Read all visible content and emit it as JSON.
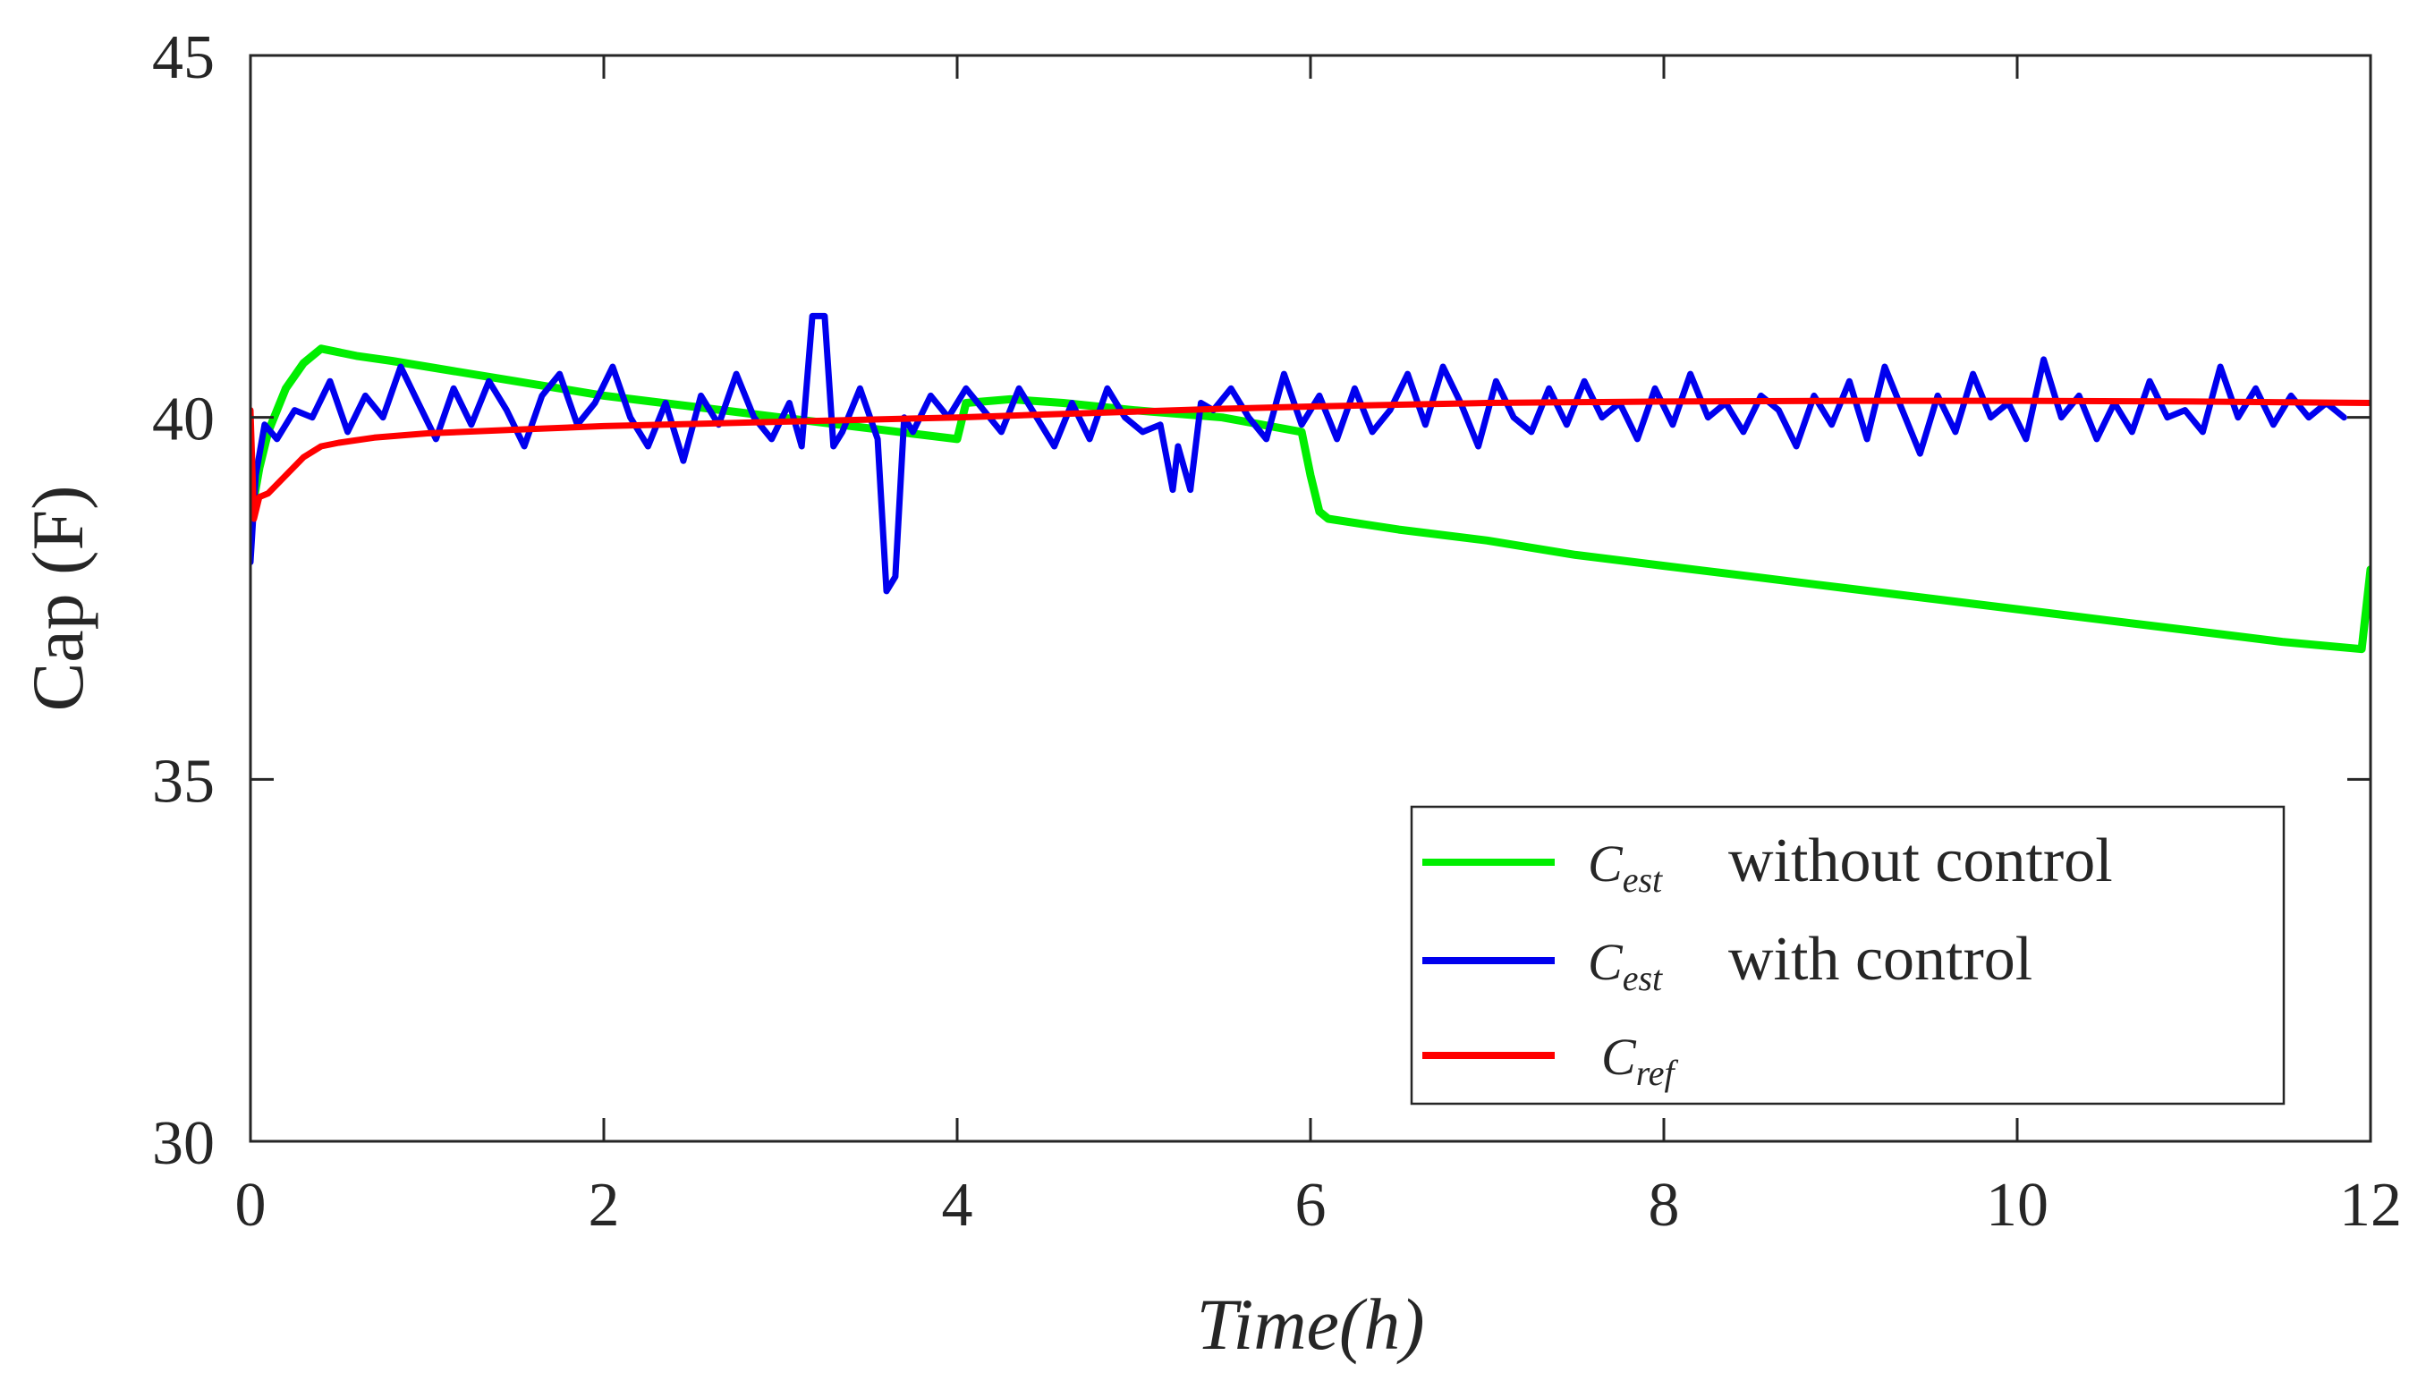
{
  "chart_data": {
    "type": "line",
    "title": "",
    "xlabel": "Time(h)",
    "ylabel": "Cap (F)",
    "xlim": [
      0,
      12
    ],
    "ylim": [
      30,
      45
    ],
    "xticks": [
      "0",
      "2",
      "4",
      "6",
      "8",
      "10",
      "12"
    ],
    "yticks": [
      "30",
      "35",
      "40",
      "45"
    ],
    "grid": false,
    "legend_position": "bottom-right",
    "legend": [
      {
        "symbol": "C",
        "subscript": "est",
        "text": "without control",
        "color": "#00ee00"
      },
      {
        "symbol": "C",
        "subscript": "est",
        "text": "with control",
        "color": "#0000ee"
      },
      {
        "symbol": "C",
        "subscript": "ref",
        "text": "",
        "color": "#ff0000"
      }
    ],
    "series": [
      {
        "name": "C_est without control",
        "color": "#00ee00",
        "x": [
          0,
          0.05,
          0.1,
          0.2,
          0.3,
          0.4,
          0.6,
          0.8,
          1.0,
          1.5,
          2.0,
          2.5,
          3.0,
          3.5,
          4.0,
          4.05,
          4.3,
          4.6,
          5.0,
          5.5,
          5.95,
          6.0,
          6.05,
          6.1,
          6.5,
          7.0,
          7.5,
          8.0,
          8.5,
          9.0,
          9.5,
          10.0,
          10.5,
          11.0,
          11.5,
          11.95,
          12.0
        ],
        "y": [
          38.6,
          39.3,
          39.8,
          40.4,
          40.75,
          40.95,
          40.85,
          40.78,
          40.7,
          40.5,
          40.3,
          40.15,
          40.0,
          39.85,
          39.7,
          40.2,
          40.25,
          40.2,
          40.1,
          40.0,
          39.8,
          39.2,
          38.7,
          38.6,
          38.45,
          38.3,
          38.1,
          37.95,
          37.8,
          37.65,
          37.5,
          37.35,
          37.2,
          37.05,
          36.9,
          36.8,
          37.9
        ]
      },
      {
        "name": "C_est with control",
        "color": "#0000ee",
        "x": [
          0,
          0.03,
          0.08,
          0.15,
          0.25,
          0.35,
          0.45,
          0.55,
          0.65,
          0.75,
          0.85,
          0.95,
          1.05,
          1.15,
          1.25,
          1.35,
          1.45,
          1.55,
          1.65,
          1.75,
          1.85,
          1.95,
          2.05,
          2.15,
          2.25,
          2.35,
          2.45,
          2.55,
          2.65,
          2.75,
          2.85,
          2.95,
          3.05,
          3.12,
          3.18,
          3.25,
          3.3,
          3.35,
          3.45,
          3.55,
          3.6,
          3.65,
          3.7,
          3.75,
          3.85,
          3.95,
          4.05,
          4.15,
          4.25,
          4.35,
          4.45,
          4.55,
          4.65,
          4.75,
          4.85,
          4.95,
          5.05,
          5.15,
          5.22,
          5.25,
          5.32,
          5.38,
          5.45,
          5.55,
          5.65,
          5.75,
          5.85,
          5.95,
          6.05,
          6.15,
          6.25,
          6.35,
          6.45,
          6.55,
          6.65,
          6.75,
          6.85,
          6.95,
          7.05,
          7.15,
          7.25,
          7.35,
          7.45,
          7.55,
          7.65,
          7.75,
          7.85,
          7.95,
          8.05,
          8.15,
          8.25,
          8.35,
          8.45,
          8.55,
          8.65,
          8.75,
          8.85,
          8.95,
          9.05,
          9.15,
          9.25,
          9.35,
          9.45,
          9.55,
          9.65,
          9.75,
          9.85,
          9.95,
          10.05,
          10.15,
          10.25,
          10.35,
          10.45,
          10.55,
          10.65,
          10.75,
          10.85,
          10.95,
          11.05,
          11.15,
          11.25,
          11.35,
          11.45,
          11.55,
          11.65,
          11.75,
          11.85
        ],
        "y": [
          38.0,
          39.2,
          39.9,
          39.7,
          40.1,
          40.0,
          40.5,
          39.8,
          40.3,
          40.0,
          40.7,
          40.2,
          39.7,
          40.4,
          39.9,
          40.5,
          40.1,
          39.6,
          40.3,
          40.6,
          39.9,
          40.2,
          40.7,
          40.0,
          39.6,
          40.2,
          39.4,
          40.3,
          39.9,
          40.6,
          40.0,
          39.7,
          40.2,
          39.6,
          41.4,
          41.4,
          39.6,
          39.8,
          40.4,
          39.7,
          37.6,
          37.8,
          40.0,
          39.8,
          40.3,
          40.0,
          40.4,
          40.1,
          39.8,
          40.4,
          40.0,
          39.6,
          40.2,
          39.7,
          40.4,
          40.0,
          39.8,
          39.9,
          39.0,
          39.6,
          39.0,
          40.2,
          40.1,
          40.4,
          40.0,
          39.7,
          40.6,
          39.9,
          40.3,
          39.7,
          40.4,
          39.8,
          40.1,
          40.6,
          39.9,
          40.7,
          40.2,
          39.6,
          40.5,
          40.0,
          39.8,
          40.4,
          39.9,
          40.5,
          40.0,
          40.2,
          39.7,
          40.4,
          39.9,
          40.6,
          40.0,
          40.2,
          39.8,
          40.3,
          40.1,
          39.6,
          40.3,
          39.9,
          40.5,
          39.7,
          40.7,
          40.1,
          39.5,
          40.3,
          39.8,
          40.6,
          40.0,
          40.2,
          39.7,
          40.8,
          40.0,
          40.3,
          39.7,
          40.2,
          39.8,
          40.5,
          40.0,
          40.1,
          39.8,
          40.7,
          40.0,
          40.4,
          39.9,
          40.3,
          40.0,
          40.2,
          40.0
        ]
      },
      {
        "name": "C_ref",
        "color": "#ff0000",
        "x": [
          0,
          0.02,
          0.05,
          0.1,
          0.2,
          0.3,
          0.4,
          0.5,
          0.7,
          1.0,
          1.5,
          2.0,
          2.5,
          3.0,
          3.5,
          4.0,
          4.5,
          5.0,
          5.5,
          6.0,
          7.0,
          8.0,
          9.0,
          10.0,
          11.0,
          12.0
        ],
        "y": [
          40.1,
          38.6,
          38.9,
          38.95,
          39.2,
          39.45,
          39.6,
          39.65,
          39.72,
          39.78,
          39.83,
          39.88,
          39.91,
          39.94,
          39.97,
          40.0,
          40.04,
          40.08,
          40.12,
          40.15,
          40.2,
          40.22,
          40.23,
          40.23,
          40.22,
          40.2
        ]
      }
    ]
  }
}
